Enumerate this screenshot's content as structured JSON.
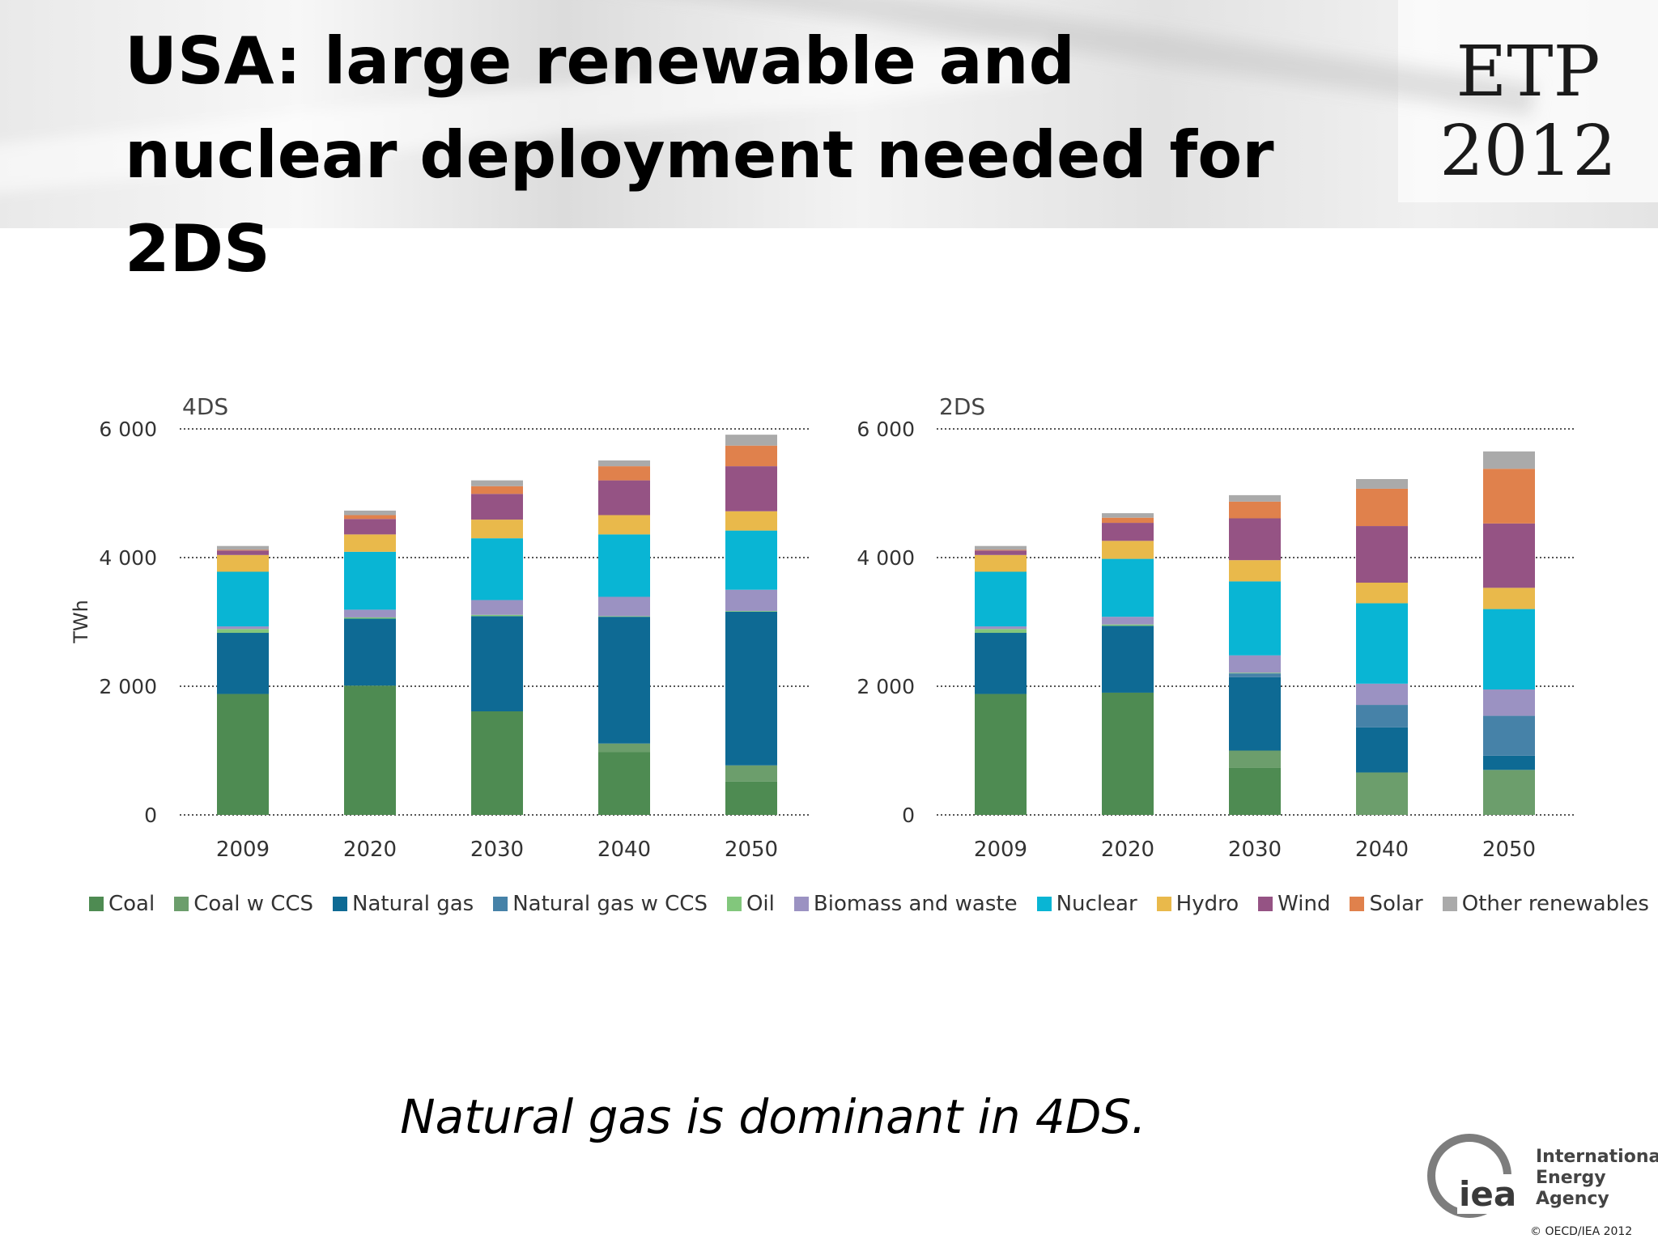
{
  "slide": {
    "title": "USA: large renewable and nuclear deployment needed for 2DS",
    "logo_line1": "ETP",
    "logo_line2": "2012",
    "caption": "Natural gas is dominant in 4DS.",
    "agency_line1": "International",
    "agency_line2": "Energy Agency",
    "agency_abbrev": "iea",
    "copyright": "© OECD/IEA 2012"
  },
  "chart_data": [
    {
      "type": "bar",
      "stacked": true,
      "title": "4DS",
      "ylabel": "TWh",
      "xlabel": "",
      "ylim": [
        0,
        6000
      ],
      "yticks": [
        0,
        2000,
        4000,
        6000
      ],
      "ytick_labels": [
        "0",
        "2 000",
        "4 000",
        "6 000"
      ],
      "grid": "dotted horizontal",
      "categories": [
        "2009",
        "2020",
        "2030",
        "2040",
        "2050"
      ],
      "series": [
        {
          "name": "Coal",
          "values": [
            1880,
            2010,
            1610,
            980,
            520
          ]
        },
        {
          "name": "Coal w CCS",
          "values": [
            0,
            0,
            0,
            130,
            250
          ]
        },
        {
          "name": "Natural gas",
          "values": [
            950,
            1040,
            1480,
            1970,
            2390
          ]
        },
        {
          "name": "Natural gas w CCS",
          "values": [
            0,
            0,
            0,
            0,
            0
          ]
        },
        {
          "name": "Oil",
          "values": [
            60,
            20,
            20,
            10,
            10
          ]
        },
        {
          "name": "Biomass and waste",
          "values": [
            40,
            120,
            230,
            300,
            330
          ]
        },
        {
          "name": "Nuclear",
          "values": [
            850,
            900,
            960,
            970,
            920
          ]
        },
        {
          "name": "Hydro",
          "values": [
            260,
            270,
            290,
            300,
            300
          ]
        },
        {
          "name": "Wind",
          "values": [
            70,
            240,
            400,
            540,
            700
          ]
        },
        {
          "name": "Solar",
          "values": [
            10,
            60,
            120,
            220,
            320
          ]
        },
        {
          "name": "Other renewables",
          "values": [
            60,
            70,
            90,
            90,
            170
          ]
        }
      ]
    },
    {
      "type": "bar",
      "stacked": true,
      "title": "2DS",
      "ylabel": "",
      "xlabel": "",
      "ylim": [
        0,
        6000
      ],
      "yticks": [
        0,
        2000,
        4000,
        6000
      ],
      "ytick_labels": [
        "0",
        "2 000",
        "4 000",
        "6 000"
      ],
      "grid": "dotted horizontal",
      "categories": [
        "2009",
        "2020",
        "2030",
        "2040",
        "2050"
      ],
      "series": [
        {
          "name": "Coal",
          "values": [
            1880,
            1900,
            730,
            0,
            0
          ]
        },
        {
          "name": "Coal w CCS",
          "values": [
            0,
            0,
            270,
            660,
            700
          ]
        },
        {
          "name": "Natural gas",
          "values": [
            950,
            1040,
            1140,
            700,
            220
          ]
        },
        {
          "name": "Natural gas w CCS",
          "values": [
            0,
            0,
            60,
            350,
            620
          ]
        },
        {
          "name": "Oil",
          "values": [
            60,
            20,
            10,
            0,
            0
          ]
        },
        {
          "name": "Biomass and waste",
          "values": [
            40,
            120,
            270,
            330,
            410
          ]
        },
        {
          "name": "Nuclear",
          "values": [
            850,
            900,
            1150,
            1250,
            1250
          ]
        },
        {
          "name": "Hydro",
          "values": [
            260,
            280,
            330,
            320,
            330
          ]
        },
        {
          "name": "Wind",
          "values": [
            70,
            280,
            650,
            880,
            1000
          ]
        },
        {
          "name": "Solar",
          "values": [
            10,
            80,
            260,
            580,
            850
          ]
        },
        {
          "name": "Other renewables",
          "values": [
            60,
            70,
            100,
            150,
            270
          ]
        }
      ]
    }
  ],
  "colors": {
    "Coal": "#4e8b52",
    "Coal w CCS": "#6c9e6c",
    "Natural gas": "#0e6a94",
    "Natural gas w CCS": "#4682a8",
    "Oil": "#82c77c",
    "Biomass and waste": "#9b92c2",
    "Nuclear": "#09b5d4",
    "Hydro": "#e9b94b",
    "Wind": "#955384",
    "Solar": "#e0814c",
    "Other renewables": "#aaaaaa"
  }
}
